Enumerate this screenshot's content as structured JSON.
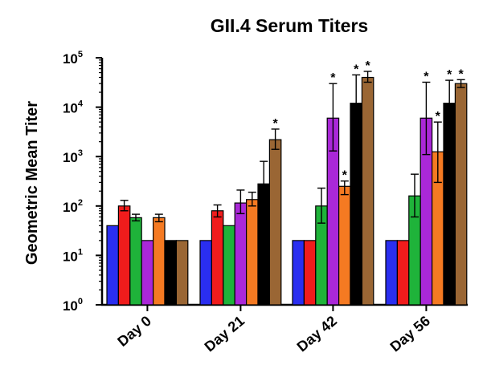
{
  "chart_data": {
    "type": "bar",
    "title": "GII.4 Serum Titers",
    "xlabel": "",
    "ylabel": "Geometric Mean Titer",
    "yscale": "log",
    "ylim": [
      1,
      100000
    ],
    "yticks": [
      {
        "base": "10",
        "exp": "0",
        "value": 1
      },
      {
        "base": "10",
        "exp": "1",
        "value": 10
      },
      {
        "base": "10",
        "exp": "2",
        "value": 100
      },
      {
        "base": "10",
        "exp": "3",
        "value": 1000
      },
      {
        "base": "10",
        "exp": "4",
        "value": 10000
      },
      {
        "base": "10",
        "exp": "5",
        "value": 100000
      }
    ],
    "categories": [
      "Day 0",
      "Day 21",
      "Day 42",
      "Day 56"
    ],
    "grid": false,
    "legend": "none",
    "significance_marker": "*",
    "series": [
      {
        "color": "#2a2ef0",
        "values": [
          40,
          20,
          20,
          20
        ],
        "err_high": [
          null,
          null,
          null,
          null
        ],
        "err_low": [
          null,
          null,
          null,
          null
        ],
        "significant": [
          false,
          false,
          false,
          false
        ]
      },
      {
        "color": "#f01c1c",
        "values": [
          100,
          80,
          20,
          20
        ],
        "err_high": [
          130,
          105,
          null,
          null
        ],
        "err_low": [
          80,
          60,
          null,
          null
        ],
        "significant": [
          false,
          false,
          false,
          false
        ]
      },
      {
        "color": "#1fb33a",
        "values": [
          58,
          40,
          100,
          160
        ],
        "err_high": [
          68,
          null,
          230,
          440
        ],
        "err_low": [
          50,
          null,
          45,
          60
        ],
        "significant": [
          false,
          false,
          false,
          false
        ]
      },
      {
        "color": "#aa28d8",
        "values": [
          20,
          115,
          6000,
          6000
        ],
        "err_high": [
          null,
          210,
          30000,
          32000
        ],
        "err_low": [
          null,
          70,
          1300,
          1100
        ],
        "significant": [
          false,
          false,
          true,
          true
        ]
      },
      {
        "color": "#f57a22",
        "values": [
          58,
          135,
          250,
          1250
        ],
        "err_high": [
          68,
          190,
          320,
          5000
        ],
        "err_low": [
          48,
          100,
          170,
          300
        ],
        "significant": [
          false,
          false,
          true,
          true
        ]
      },
      {
        "color": "#000000",
        "values": [
          20,
          280,
          12000,
          12000
        ],
        "err_high": [
          null,
          800,
          45000,
          35000
        ],
        "err_low": [
          null,
          100,
          3000,
          4000
        ],
        "significant": [
          false,
          false,
          true,
          true
        ]
      },
      {
        "color": "#9a6634",
        "values": [
          20,
          2200,
          40000,
          30000
        ],
        "err_high": [
          null,
          3600,
          53000,
          36000
        ],
        "err_low": [
          null,
          1400,
          32000,
          25000
        ],
        "significant": [
          false,
          true,
          true,
          true
        ]
      }
    ]
  }
}
